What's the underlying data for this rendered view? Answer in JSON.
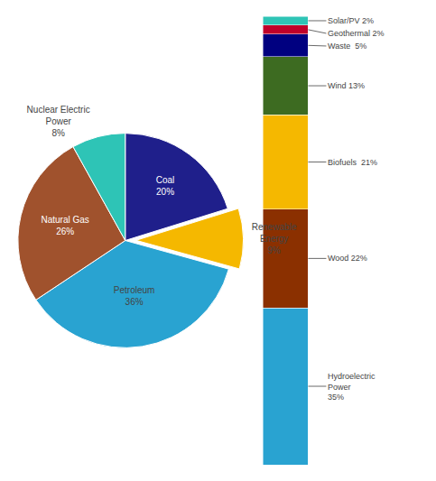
{
  "chart_data": [
    {
      "type": "pie",
      "categories": [
        "Coal",
        "Renewable\nEnergy",
        "Petroleum",
        "Natural Gas",
        "Nuclear Electric\nPower"
      ],
      "values": [
        20,
        9,
        36,
        26,
        8
      ],
      "value_labels": [
        "20%",
        "9%",
        "36%",
        "26%",
        "8%"
      ],
      "colors": [
        "#1F1F8B",
        "#F5B800",
        "#29A3D1",
        "#A0522D",
        "#2EC4B6"
      ],
      "data_labels": true
    },
    {
      "type": "bar",
      "stacked": true,
      "categories": [
        null
      ],
      "series": [
        {
          "color": "#29A3D1",
          "values": [
            35
          ],
          "value_labels": [
            "Hydroelectric\nPower\n35%"
          ]
        },
        {
          "color": "#8B3000",
          "values": [
            22
          ],
          "value_labels": [
            "Wood 22%"
          ]
        },
        {
          "color": "#F5B800",
          "values": [
            21
          ],
          "value_labels": [
            "Biofuels  21%"
          ]
        },
        {
          "color": "#3D6B21",
          "values": [
            13
          ],
          "value_labels": [
            "Wind 13%"
          ]
        },
        {
          "color": "#000080",
          "values": [
            5
          ],
          "value_labels": [
            "Waste  5%"
          ]
        },
        {
          "color": "#C0002A",
          "values": [
            2
          ],
          "value_labels": [
            "Geothermal 2%"
          ]
        },
        {
          "color": "#2EC4B6",
          "values": [
            2
          ],
          "value_labels": [
            "Solar/PV 2%"
          ]
        }
      ],
      "ylim": [
        0,
        100
      ],
      "tick_labels": false,
      "data_labels": true
    }
  ]
}
